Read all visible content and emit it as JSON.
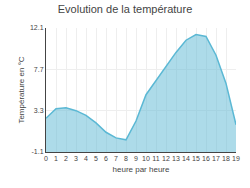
{
  "chart_data": {
    "type": "area",
    "title": "Evolution de la température",
    "x_label": "heure par heure",
    "y_label": "Température en °C",
    "x": [
      0,
      1,
      2,
      3,
      4,
      5,
      6,
      7,
      8,
      9,
      10,
      11,
      12,
      13,
      14,
      15,
      16,
      17,
      18,
      19
    ],
    "values": [
      2.5,
      3.5,
      3.6,
      3.3,
      2.8,
      2.0,
      1.0,
      0.4,
      0.2,
      2.2,
      5.0,
      6.5,
      8.0,
      9.5,
      10.8,
      11.4,
      11.2,
      9.2,
      6.2,
      1.8
    ],
    "color": "#5bb8d4",
    "xlim": [
      0,
      19
    ],
    "xticks": [
      0,
      1,
      2,
      3,
      4,
      5,
      6,
      7,
      8,
      9,
      10,
      11,
      12,
      13,
      14,
      15,
      16,
      17,
      18,
      19
    ],
    "ylim": [
      -1.1,
      12.1
    ],
    "yticks": [
      -1.1,
      3.3,
      7.7,
      12.1
    ],
    "grid": true
  }
}
